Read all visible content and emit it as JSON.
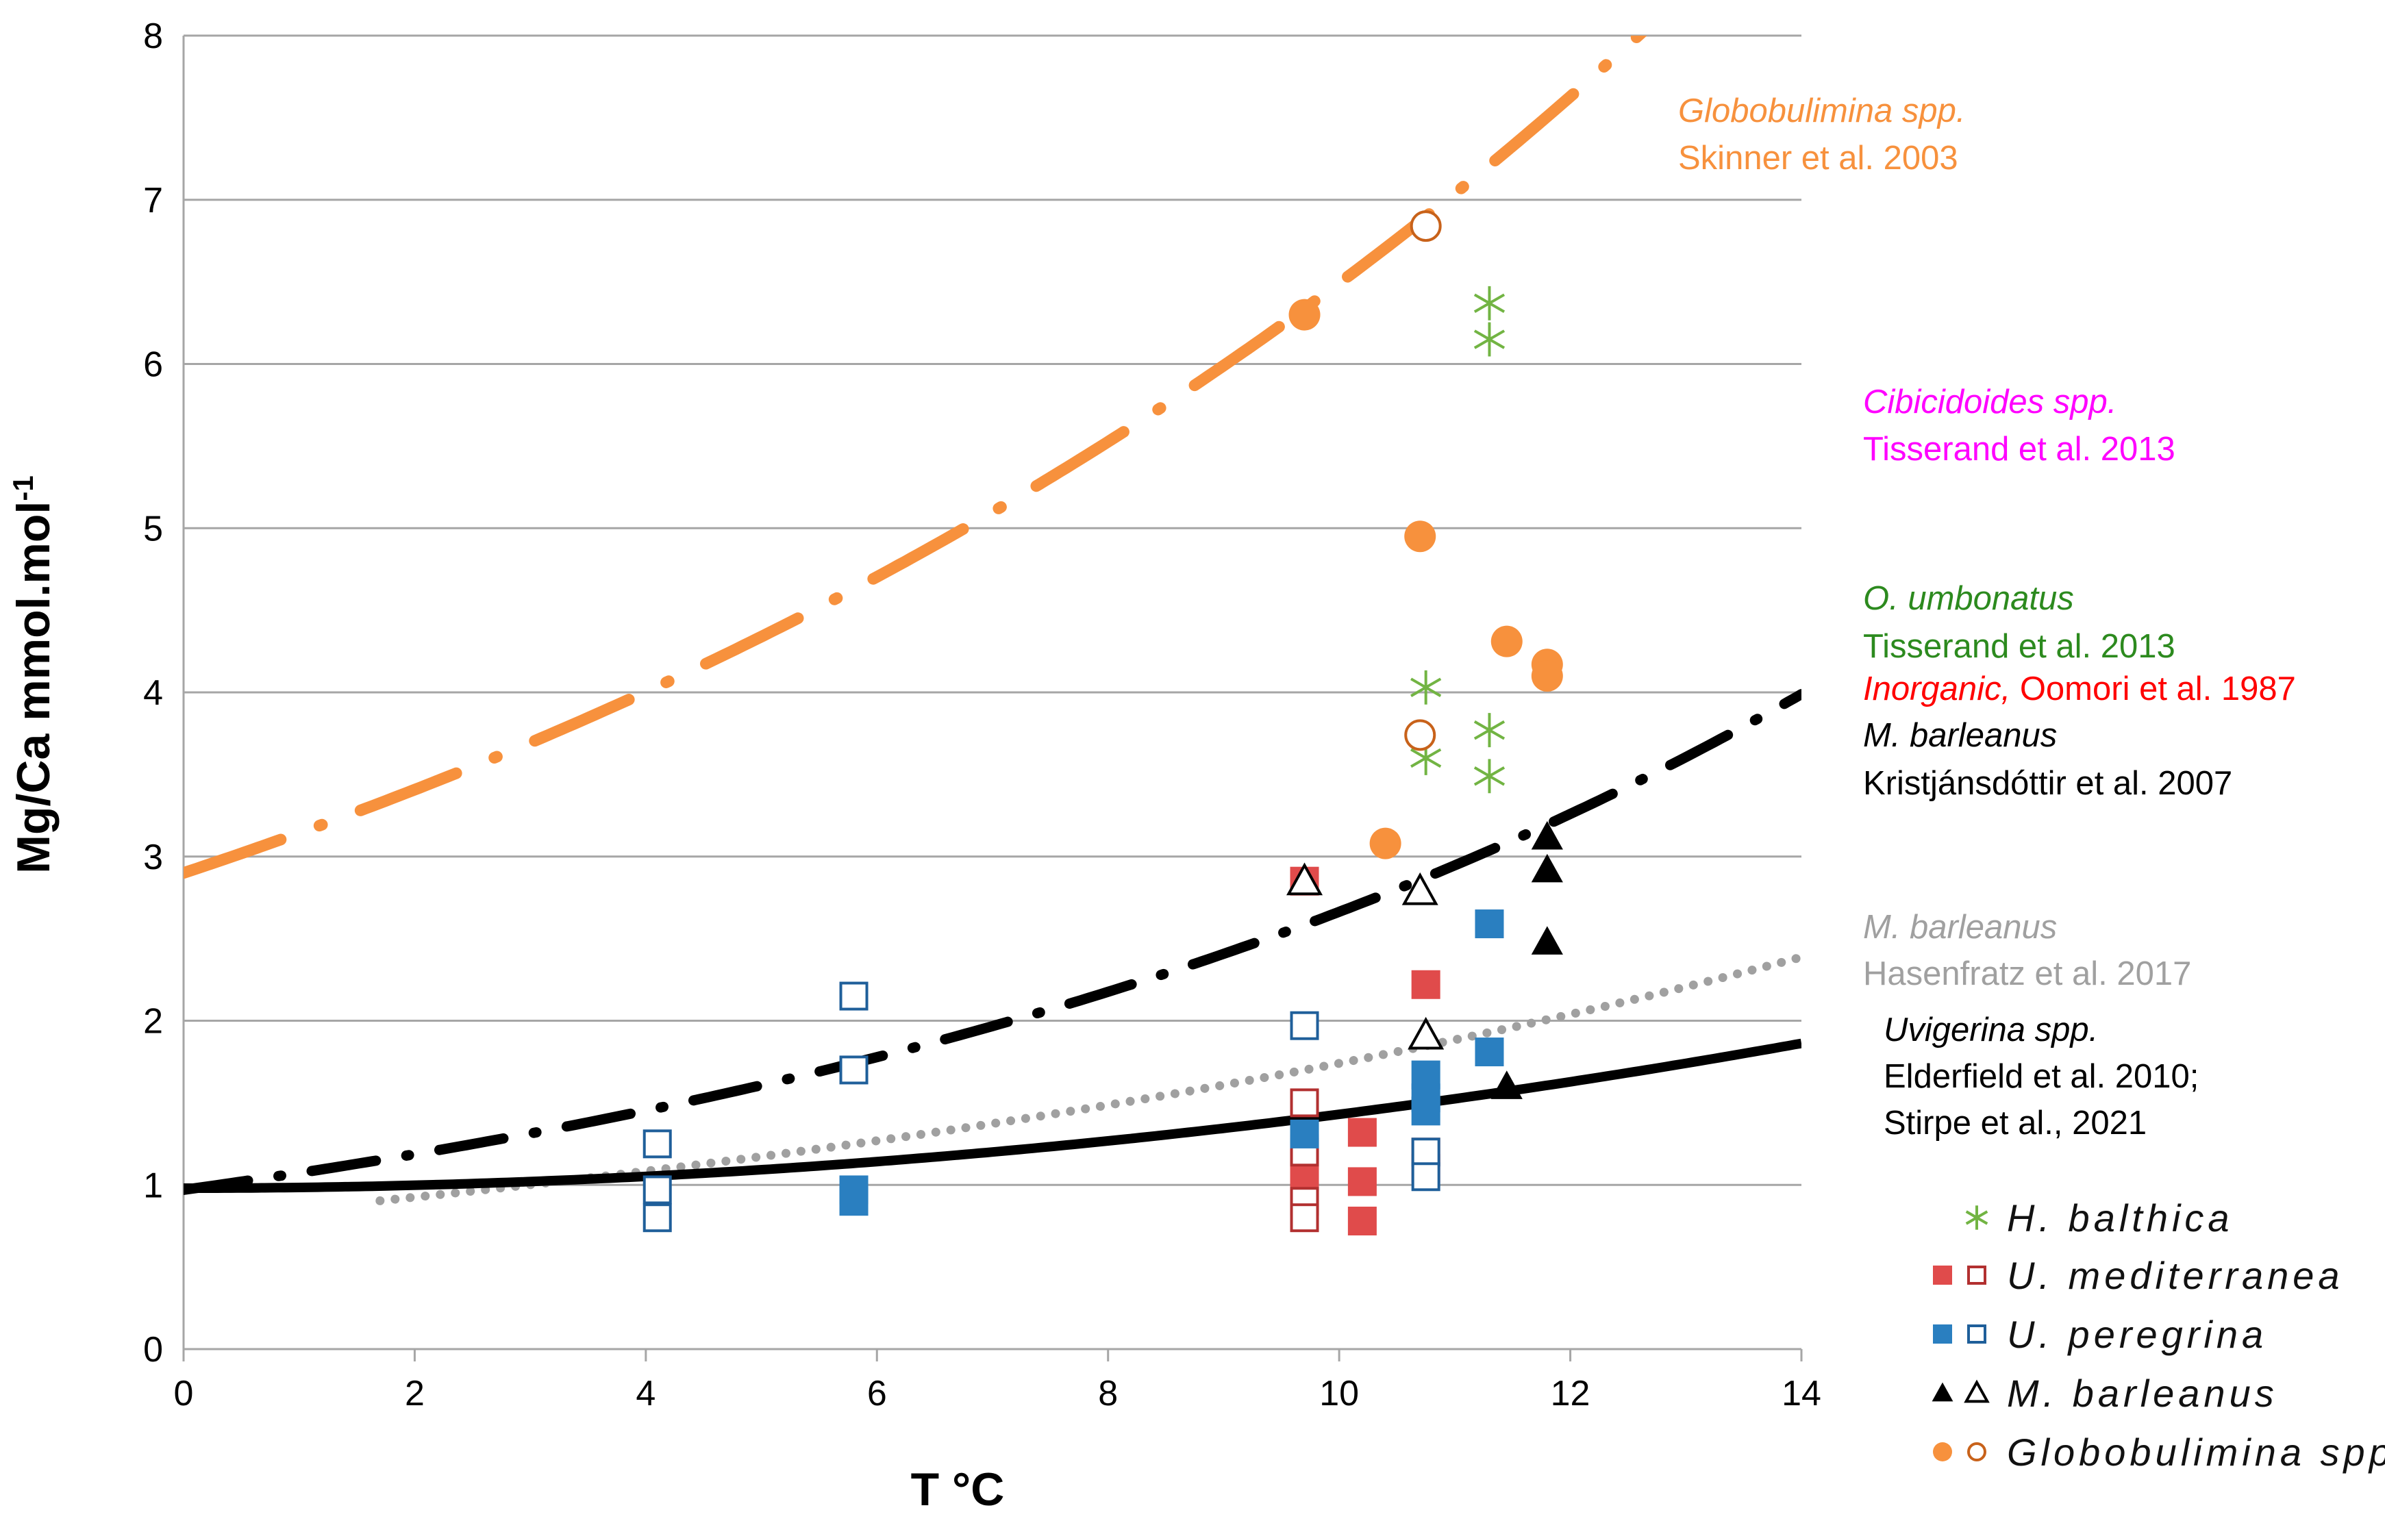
{
  "chart_data": {
    "type": "scatter",
    "xlabel": "T °C",
    "ylabel": "Mg/Ca mmol.mol-1",
    "ylabel_main": "Mg/Ca mmol.mol",
    "ylabel_sup": "-1",
    "xlim": [
      0,
      14
    ],
    "ylim": [
      0,
      8
    ],
    "x_ticks": [
      "0",
      "2",
      "4",
      "6",
      "8",
      "10",
      "12",
      "14"
    ],
    "y_ticks": [
      "0",
      "1",
      "2",
      "3",
      "4",
      "5",
      "6",
      "7",
      "8"
    ],
    "grid": "horizontal",
    "colors": {
      "orange": "#F7913D",
      "orange_open": "#C8621A",
      "red": "#E04B4B",
      "red_open": "#B23030",
      "blue": "#2A7FC0",
      "blue_open": "#1F5F9A",
      "green": "#72B443",
      "black": "#000000",
      "gray": "#A0A0A0",
      "magenta": "#FF00FF",
      "dark_green": "#2C8A1E",
      "annot_red": "#FF0000",
      "grid": "#A6A6A6"
    },
    "calibration_curves": [
      {
        "name": "Globobulimina spp. Skinner et al. 2003",
        "equation": "y = 2.9 * exp(0.0806 * x)",
        "a": 2.9,
        "b": 0.0806,
        "x_start": 0,
        "x_end": 14,
        "style": "long-dash-dot",
        "color": "orange"
      },
      {
        "name": "M. barleanus Kristjánsdóttir et al. 2007",
        "equation": "y = 0.97 * exp(0.101 * x)",
        "a": 0.97,
        "b": 0.101,
        "x_start": 0,
        "x_end": 14,
        "style": "dash-dot",
        "color": "black"
      },
      {
        "name": "M. barleanus Hasenfratz et al. 2017",
        "equation": "y = 0.79 * exp(0.079 * x)",
        "a": 0.79,
        "b": 0.079,
        "x_start": 1.7,
        "x_end": 14,
        "style": "dotted",
        "color": "gray"
      },
      {
        "name": "Uvigerina spp. Elderfield et al. 2010; Stirpe et al., 2021",
        "equation": "y = 0.98 + 0.0045 * x^2",
        "linear": 0.98,
        "quad": 0.0045,
        "x_start": 0,
        "x_end": 14,
        "style": "solid",
        "color": "black"
      }
    ],
    "series": [
      {
        "name": "H. balthica",
        "marker": "asterisk",
        "filled": true,
        "color": "green",
        "points": [
          [
            11.3,
            6.37
          ],
          [
            11.3,
            6.15
          ],
          [
            10.75,
            4.03
          ],
          [
            10.75,
            3.6
          ],
          [
            11.3,
            3.77
          ],
          [
            11.3,
            3.49
          ]
        ]
      },
      {
        "name": "U. mediterranea (filled)",
        "marker": "square",
        "filled": true,
        "color": "red",
        "points": [
          [
            9.7,
            2.85
          ],
          [
            10.75,
            2.22
          ],
          [
            10.2,
            1.32
          ],
          [
            9.7,
            1.22
          ],
          [
            9.7,
            1.05
          ],
          [
            9.7,
            0.9
          ],
          [
            10.2,
            1.02
          ],
          [
            10.2,
            0.78
          ],
          [
            10.75,
            1.1
          ]
        ]
      },
      {
        "name": "U. mediterranea (open)",
        "marker": "square",
        "filled": false,
        "color": "red_open",
        "points": [
          [
            9.7,
            1.5
          ],
          [
            9.7,
            1.2
          ],
          [
            9.7,
            0.9
          ],
          [
            9.7,
            0.8
          ],
          [
            10.75,
            1.2
          ]
        ]
      },
      {
        "name": "U. peregrina (filled)",
        "marker": "square",
        "filled": true,
        "color": "blue",
        "points": [
          [
            11.3,
            2.59
          ],
          [
            10.75,
            1.67
          ],
          [
            10.75,
            1.53
          ],
          [
            10.75,
            1.45
          ],
          [
            11.3,
            1.81
          ],
          [
            9.7,
            1.31
          ],
          [
            5.8,
            0.97
          ],
          [
            5.8,
            0.9
          ]
        ]
      },
      {
        "name": "U. peregrina (open)",
        "marker": "square",
        "filled": false,
        "color": "blue_open",
        "points": [
          [
            5.8,
            2.15
          ],
          [
            5.8,
            1.7
          ],
          [
            4.1,
            1.25
          ],
          [
            4.1,
            0.97
          ],
          [
            4.1,
            0.8
          ],
          [
            9.7,
            1.97
          ],
          [
            10.75,
            1.2
          ],
          [
            10.75,
            1.05
          ]
        ]
      },
      {
        "name": "M. barleanus (filled)",
        "marker": "triangle",
        "filled": true,
        "color": "black",
        "points": [
          [
            11.8,
            3.12
          ],
          [
            11.8,
            2.92
          ],
          [
            11.8,
            2.48
          ],
          [
            11.45,
            1.6
          ]
        ]
      },
      {
        "name": "M. barleanus (open)",
        "marker": "triangle",
        "filled": false,
        "color": "black",
        "points": [
          [
            9.7,
            2.85
          ],
          [
            10.7,
            2.79
          ],
          [
            10.75,
            1.91
          ]
        ]
      },
      {
        "name": "Globobulimina spp. (filled)",
        "marker": "circle",
        "filled": true,
        "color": "orange",
        "points": [
          [
            9.7,
            6.3
          ],
          [
            10.7,
            4.95
          ],
          [
            11.45,
            4.31
          ],
          [
            11.8,
            4.17
          ],
          [
            11.8,
            4.1
          ],
          [
            10.4,
            3.08
          ]
        ]
      },
      {
        "name": "Globobulimina spp. (open)",
        "marker": "circle",
        "filled": false,
        "color": "orange_open",
        "points": [
          [
            10.75,
            6.84
          ],
          [
            10.7,
            3.74
          ]
        ]
      }
    ],
    "annotations": [
      {
        "id": "glob",
        "lines": [
          {
            "text": "Globobulimina spp.",
            "italic": true,
            "color": "orange"
          },
          {
            "text": "Skinner et al. 2003",
            "italic": false,
            "color": "orange"
          }
        ]
      },
      {
        "id": "cib",
        "lines": [
          {
            "text": "Cibicidoides spp.",
            "italic": true,
            "color": "magenta"
          },
          {
            "text": "Tisserand et al. 2013",
            "italic": false,
            "color": "magenta"
          }
        ]
      },
      {
        "id": "oumb",
        "lines": [
          {
            "text": "O. umbonatus",
            "italic": true,
            "color": "dark_green"
          },
          {
            "text": "Tisserand et al. 2013",
            "italic": false,
            "color": "dark_green"
          }
        ]
      },
      {
        "id": "inorg",
        "lines": [
          {
            "text": "Inorganic,",
            "italic": true,
            "color": "annot_red"
          },
          {
            "text": " Oomori et al. 1987",
            "italic": false,
            "color": "annot_red"
          }
        ]
      },
      {
        "id": "mbk",
        "lines": [
          {
            "text": "M. barleanus",
            "italic": true,
            "color": "black"
          },
          {
            "text": "Kristjánsdóttir et al. 2007",
            "italic": false,
            "color": "black"
          }
        ]
      },
      {
        "id": "mbh",
        "lines": [
          {
            "text": "M. barleanus",
            "italic": true,
            "color": "gray"
          },
          {
            "text": "Hasenfratz et al. 2017",
            "italic": false,
            "color": "gray"
          }
        ]
      },
      {
        "id": "uvi",
        "lines": [
          {
            "text": "Uvigerina spp.",
            "italic": true,
            "color": "black"
          },
          {
            "text": "Elderfield et al. 2010;",
            "italic": false,
            "color": "black"
          },
          {
            "text": "Stirpe et al., 2021",
            "italic": false,
            "color": "black"
          }
        ]
      }
    ],
    "legend": {
      "position": "bottom-right",
      "entries": [
        {
          "label": "H. balthica",
          "markers": [
            {
              "shape": "asterisk",
              "filled": true,
              "color": "green"
            }
          ]
        },
        {
          "label": "U. mediterranea",
          "markers": [
            {
              "shape": "square",
              "filled": true,
              "color": "red"
            },
            {
              "shape": "square",
              "filled": false,
              "color": "red_open"
            }
          ]
        },
        {
          "label": "U. peregrina",
          "markers": [
            {
              "shape": "square",
              "filled": true,
              "color": "blue"
            },
            {
              "shape": "square",
              "filled": false,
              "color": "blue_open"
            }
          ]
        },
        {
          "label": "M. barleanus",
          "markers": [
            {
              "shape": "triangle",
              "filled": true,
              "color": "black"
            },
            {
              "shape": "triangle",
              "filled": false,
              "color": "black"
            }
          ]
        },
        {
          "label": "Globobulimina spp.",
          "markers": [
            {
              "shape": "circle",
              "filled": true,
              "color": "orange"
            },
            {
              "shape": "circle",
              "filled": false,
              "color": "orange_open"
            }
          ]
        }
      ]
    }
  }
}
